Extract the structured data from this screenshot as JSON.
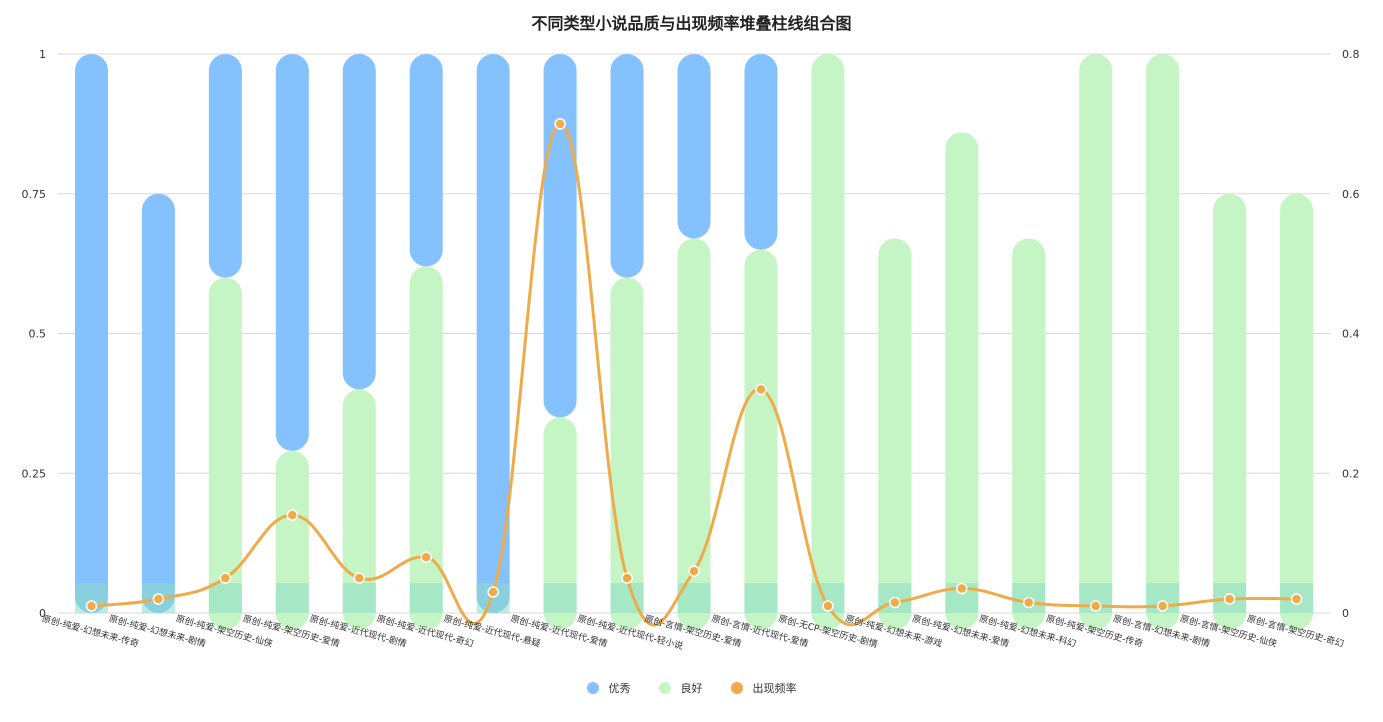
{
  "chart_data": {
    "type": "bar",
    "title": "不同类型小说品质与出现频率堆叠柱线组合图",
    "categories": [
      "原创-纯爱-幻想未来-传奇",
      "原创-纯爱-幻想未来-剧情",
      "原创-纯爱-架空历史-仙侠",
      "原创-纯爱-架空历史-爱情",
      "原创-纯爱-近代现代-剧情",
      "原创-纯爱-近代现代-奇幻",
      "原创-纯爱-近代现代-悬疑",
      "原创-纯爱-近代现代-爱情",
      "原创-纯爱-近代现代-轻小说",
      "原创-言情-架空历史-爱情",
      "原创-言情-近代现代-爱情",
      "原创-无CP-架空历史-剧情",
      "原创-纯爱-幻想未来-游戏",
      "原创-纯爱-幻想未来-爱情",
      "原创-纯爱-幻想未来-科幻",
      "原创-纯爱-架空历史-传奇",
      "原创-言情-幻想未来-剧情",
      "原创-言情-架空历史-仙侠",
      "原创-言情-架空历史-奇幻"
    ],
    "series": [
      {
        "name": "优秀",
        "type": "bar",
        "axis": "left",
        "values": [
          1,
          0.75,
          0.4,
          0.71,
          0.6,
          0.38,
          1,
          0.65,
          0.4,
          0.33,
          0.35,
          0,
          0,
          0,
          0,
          0,
          0,
          0,
          0
        ]
      },
      {
        "name": "良好",
        "type": "bar",
        "axis": "left",
        "values": [
          0,
          0,
          0.6,
          0.29,
          0.4,
          0.62,
          0,
          0.35,
          0.6,
          0.67,
          0.65,
          1,
          0.67,
          0.86,
          0.67,
          1,
          1,
          0.75,
          0.75
        ]
      },
      {
        "name": "出现频率",
        "type": "line",
        "axis": "right",
        "values": [
          0.01,
          0.02,
          0.05,
          0.14,
          0.05,
          0.08,
          0.03,
          0.7,
          0.05,
          0.06,
          0.32,
          0.01,
          0.015,
          0.035,
          0.015,
          0.01,
          0.01,
          0.02,
          0.02
        ]
      }
    ],
    "ylim_left": [
      0,
      1
    ],
    "ylim_right": [
      0,
      0.8
    ],
    "yticks_left": [
      "0",
      "0.25",
      "0.5",
      "0.75",
      "1"
    ],
    "yticks_right": [
      "0",
      "0.2",
      "0.4",
      "0.6",
      "0.8"
    ],
    "ytick_values_left": [
      0,
      0.25,
      0.5,
      0.75,
      1
    ],
    "ytick_values_right": [
      0,
      0.2,
      0.4,
      0.6,
      0.8
    ],
    "grid": true,
    "legend_position": "bottom",
    "colors": {
      "excellent": "#85c1fd",
      "good": "#c5f5c4",
      "overlap": "#8cdcc6",
      "line": "#efab4a",
      "grid": "#d9d9d9",
      "axis_text": "#333333"
    }
  },
  "legend": [
    {
      "label": "优秀",
      "color": "#85c1fd"
    },
    {
      "label": "良好",
      "color": "#c5f5c4"
    },
    {
      "label": "出现频率",
      "color": "#efab4a"
    }
  ]
}
